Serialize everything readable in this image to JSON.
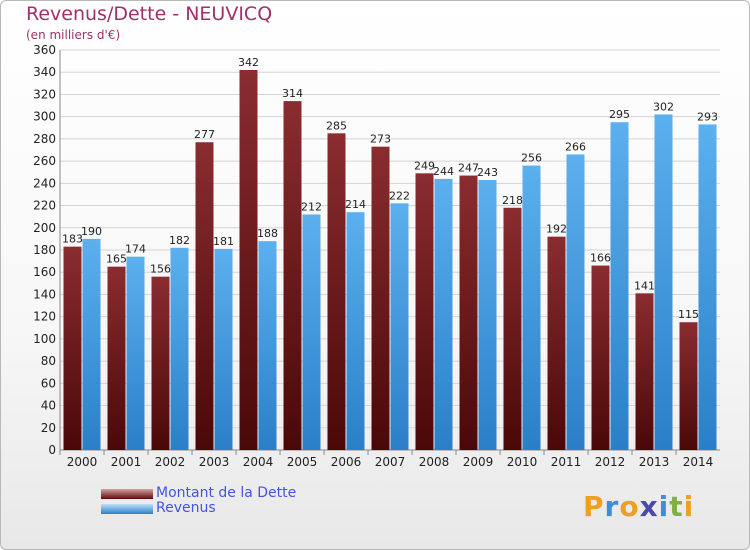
{
  "title": "Revenus/Dette - NEUVICQ",
  "subtitle": "(en milliers d'€)",
  "logo": {
    "text": "Proxiti",
    "letters": [
      {
        "ch": "P",
        "color": "#f0a020"
      },
      {
        "ch": "r",
        "color": "#3a8fd8"
      },
      {
        "ch": "o",
        "color": "#f0a020"
      },
      {
        "ch": "x",
        "color": "#4a4aa8"
      },
      {
        "ch": "i",
        "color": "#3a8fd8"
      },
      {
        "ch": "t",
        "color": "#80b040"
      },
      {
        "ch": "i",
        "color": "#f0a020"
      }
    ]
  },
  "colors": {
    "dette": "#7a2428",
    "revenus": "#45a0e2",
    "axis_text": "#222222",
    "grid": "#d4d4d4"
  },
  "chart_data": {
    "type": "bar",
    "categories": [
      "2000",
      "2001",
      "2002",
      "2003",
      "2004",
      "2005",
      "2006",
      "2007",
      "2008",
      "2009",
      "2010",
      "2011",
      "2012",
      "2013",
      "2014"
    ],
    "series": [
      {
        "name": "Montant de la Dette",
        "values": [
          183,
          165,
          156,
          277,
          342,
          314,
          285,
          273,
          249,
          247,
          218,
          192,
          166,
          141,
          115
        ]
      },
      {
        "name": "Revenus",
        "values": [
          190,
          174,
          182,
          181,
          188,
          212,
          214,
          222,
          244,
          243,
          256,
          266,
          295,
          302,
          293
        ]
      }
    ],
    "ylim": [
      0,
      360
    ],
    "yticks": [
      0,
      20,
      40,
      60,
      80,
      100,
      120,
      140,
      160,
      180,
      200,
      220,
      240,
      260,
      280,
      300,
      320,
      340,
      360
    ],
    "grid": true,
    "legend_position": "bottom-left"
  }
}
